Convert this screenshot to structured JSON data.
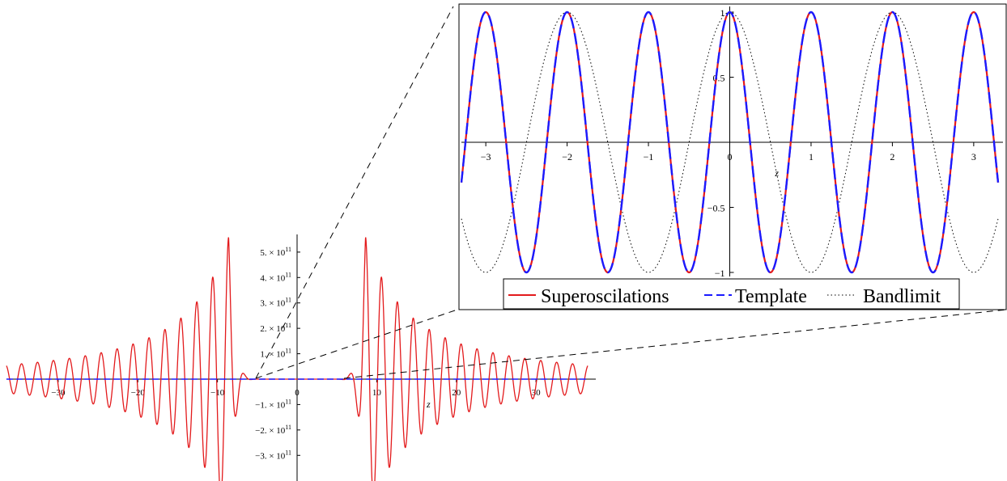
{
  "chart_data": [
    {
      "id": "main",
      "type": "line",
      "xlabel": "z",
      "ylabel": "",
      "xlim": [
        -37,
        37
      ],
      "ylim": [
        -380000000000.0,
        580000000000.0
      ],
      "x_ticks": [
        -30,
        -20,
        -10,
        0,
        10,
        20,
        30
      ],
      "x_tick_labels": [
        "−30",
        "−20",
        "−10",
        "0",
        "10",
        "20",
        "30"
      ],
      "y_ticks": [
        500000000000.0,
        400000000000.0,
        300000000000.0,
        200000000000.0,
        100000000000.0,
        -100000000000.0,
        -200000000000.0,
        -300000000000.0
      ],
      "y_tick_labels": [
        {
          "mantissa": "5. × 10",
          "exp": "11"
        },
        {
          "mantissa": "4. × 10",
          "exp": "11"
        },
        {
          "mantissa": "3. × 10",
          "exp": "11"
        },
        {
          "mantissa": "2. × 10",
          "exp": "11"
        },
        {
          "mantissa": "1. × 10",
          "exp": "11"
        },
        {
          "mantissa": "−1. × 10",
          "exp": "11"
        },
        {
          "mantissa": "−2. × 10",
          "exp": "11"
        },
        {
          "mantissa": "−3. × 10",
          "exp": "11"
        }
      ],
      "series": [
        {
          "name": "Superoscilations",
          "color": "#e31a1c",
          "style": "solid",
          "description_values": {
            "envelope_peak_z": [
              -8.6,
              8.6
            ],
            "peak_values": [
              560000000000.0,
              -385000000000.0,
              330000000000.0,
              -285000000000.0,
              255000000000.0,
              -245000000000.0,
              220000000000.0,
              -210000000000.0,
              190000000000.0,
              -185000000000.0,
              170000000000.0,
              -165000000000.0,
              150000000000.0,
              -145000000000.0,
              140000000000.0,
              -135000000000.0,
              130000000000.0,
              -125000000000.0,
              120000000000.0,
              -115000000000.0,
              110000000000.0,
              -105000000000.0
            ],
            "flat_region_z": [
              -5.5,
              5.5
            ]
          }
        },
        {
          "name": "Template",
          "color": "#1a1aff",
          "style": "dashed"
        },
        {
          "name": "Bandlimit",
          "color": "#000000",
          "style": "dotted"
        }
      ]
    },
    {
      "id": "inset",
      "type": "line",
      "xlabel": "z",
      "ylabel": "",
      "xlim": [
        -3.3,
        3.3
      ],
      "ylim": [
        -1.0,
        1.0
      ],
      "x_ticks": [
        -3,
        -2,
        -1,
        0,
        1,
        2,
        3
      ],
      "x_tick_labels": [
        "−3",
        "−2",
        "−1",
        "0",
        "1",
        "2",
        "3"
      ],
      "y_ticks": [
        1,
        0.5,
        -0.5,
        -1
      ],
      "y_tick_labels": [
        "1",
        "0.5",
        "−0.5",
        "−1"
      ],
      "series": [
        {
          "name": "Superoscilations",
          "color": "#e31a1c",
          "style": "solid",
          "function": "cos(2πz)"
        },
        {
          "name": "Template",
          "color": "#1a1aff",
          "style": "dashed",
          "function": "cos(2πz)"
        },
        {
          "name": "Bandlimit",
          "color": "#000000",
          "style": "dotted",
          "function": "cos(πz)"
        }
      ],
      "legend": {
        "placement": "bottom",
        "entries": [
          "Superoscilations",
          "Template",
          "Bandlimit"
        ]
      }
    }
  ]
}
